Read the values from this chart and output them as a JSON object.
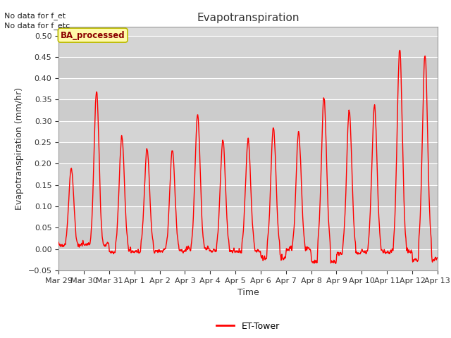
{
  "title": "Evapotranspiration",
  "ylabel": "Evapotranspiration (mm/hr)",
  "xlabel": "Time",
  "ylim": [
    -0.05,
    0.52
  ],
  "yticks": [
    -0.05,
    0.0,
    0.05,
    0.1,
    0.15,
    0.2,
    0.25,
    0.3,
    0.35,
    0.4,
    0.45,
    0.5
  ],
  "line_color": "#FF0000",
  "line_width": 1.0,
  "bg_color": "#DCDCDC",
  "plot_bg": "#DCDCDC",
  "annotations_text": [
    "No data for f_et",
    "No data for f_etc"
  ],
  "legend_label": "ET-Tower",
  "watermark_text": "BA_processed",
  "x_tick_labels": [
    "Mar 29",
    "Mar 30",
    "Mar 31",
    "Apr 1",
    "Apr 2",
    "Apr 3",
    "Apr 4",
    "Apr 5",
    "Apr 6",
    "Apr 7",
    "Apr 8",
    "Apr 9",
    "Apr 10",
    "Apr 11",
    "Apr 12",
    "Apr 13"
  ],
  "title_fontsize": 11,
  "label_fontsize": 9,
  "tick_fontsize": 8,
  "daily_peaks": [
    0.19,
    0.37,
    0.265,
    0.235,
    0.23,
    0.315,
    0.255,
    0.255,
    0.285,
    0.275,
    0.355,
    0.325,
    0.335,
    0.47,
    0.46,
    0.02
  ],
  "daily_mins": [
    0.01,
    0.01,
    -0.005,
    -0.005,
    -0.005,
    0.0,
    -0.005,
    -0.005,
    -0.02,
    0.0,
    -0.03,
    -0.01,
    -0.005,
    -0.005,
    -0.025,
    -0.03
  ],
  "band_colors": [
    "#D8D8D8",
    "#C8C8C8"
  ],
  "grid_color": "#FFFFFF",
  "n_days": 15
}
